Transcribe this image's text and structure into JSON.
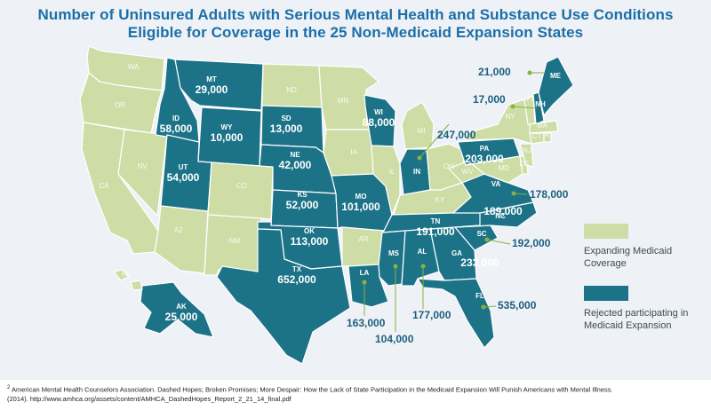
{
  "title": {
    "line1": "Number of Uninsured Adults with Serious Mental Health and Substance Use Conditions",
    "line2": "Eligible for Coverage in the 25 Non-Medicaid Expansion States"
  },
  "colors": {
    "expanding": "#cedda6",
    "rejected": "#1c7388",
    "background": "#eef1f6",
    "title": "#1b6fa8",
    "leader": "#8bb13e"
  },
  "legend": {
    "expanding_label": "Expanding Medicaid Coverage",
    "rejected_label": "Rejected participating in Medicaid Expansion"
  },
  "states_rejected": [
    {
      "abbr": "MT",
      "value": "29,000"
    },
    {
      "abbr": "ID",
      "value": "58,000"
    },
    {
      "abbr": "WY",
      "value": "10,000"
    },
    {
      "abbr": "SD",
      "value": "13,000"
    },
    {
      "abbr": "NE",
      "value": "42,000"
    },
    {
      "abbr": "UT",
      "value": "54,000"
    },
    {
      "abbr": "KS",
      "value": "52,000"
    },
    {
      "abbr": "OK",
      "value": "113,000"
    },
    {
      "abbr": "TX",
      "value": "652,000"
    },
    {
      "abbr": "MO",
      "value": "101,000"
    },
    {
      "abbr": "WI",
      "value": "88,000"
    },
    {
      "abbr": "AK",
      "value": "25,000"
    },
    {
      "abbr": "IN",
      "value": "247,000"
    },
    {
      "abbr": "PA",
      "value": "203,000"
    },
    {
      "abbr": "VA",
      "value": "178,000"
    },
    {
      "abbr": "NC",
      "value": "189,000"
    },
    {
      "abbr": "TN",
      "value": "191,000"
    },
    {
      "abbr": "SC",
      "value": "192,000"
    },
    {
      "abbr": "GA",
      "value": "233,000"
    },
    {
      "abbr": "FL",
      "value": "535,000"
    },
    {
      "abbr": "AL",
      "value": "177,000"
    },
    {
      "abbr": "MS",
      "value": "104,000"
    },
    {
      "abbr": "LA",
      "value": "163,000"
    },
    {
      "abbr": "ME",
      "value": "21,000"
    },
    {
      "abbr": "NH",
      "value": "17,000"
    }
  ],
  "states_expanding": [
    "WA",
    "OR",
    "CA",
    "NV",
    "AZ",
    "CO",
    "NM",
    "ND",
    "MN",
    "IA",
    "IL",
    "AR",
    "KY",
    "MI",
    "OH",
    "WV",
    "NY",
    "VT",
    "MA",
    "CT",
    "RI",
    "NJ",
    "DE",
    "MD",
    "HI"
  ],
  "footnote": {
    "marker": "2",
    "line1": "American Mental Health Counselors Association. Dashed Hopes; Broken Promises; More Despair: How the Lack of State Participation in the Medicaid Expansion Will Punish Americans with Mental Illness.",
    "line2": "(2014).  http://www.amhca.org/assets/content/AMHCA_DashedHopes_Report_2_21_14_final.pdf"
  }
}
